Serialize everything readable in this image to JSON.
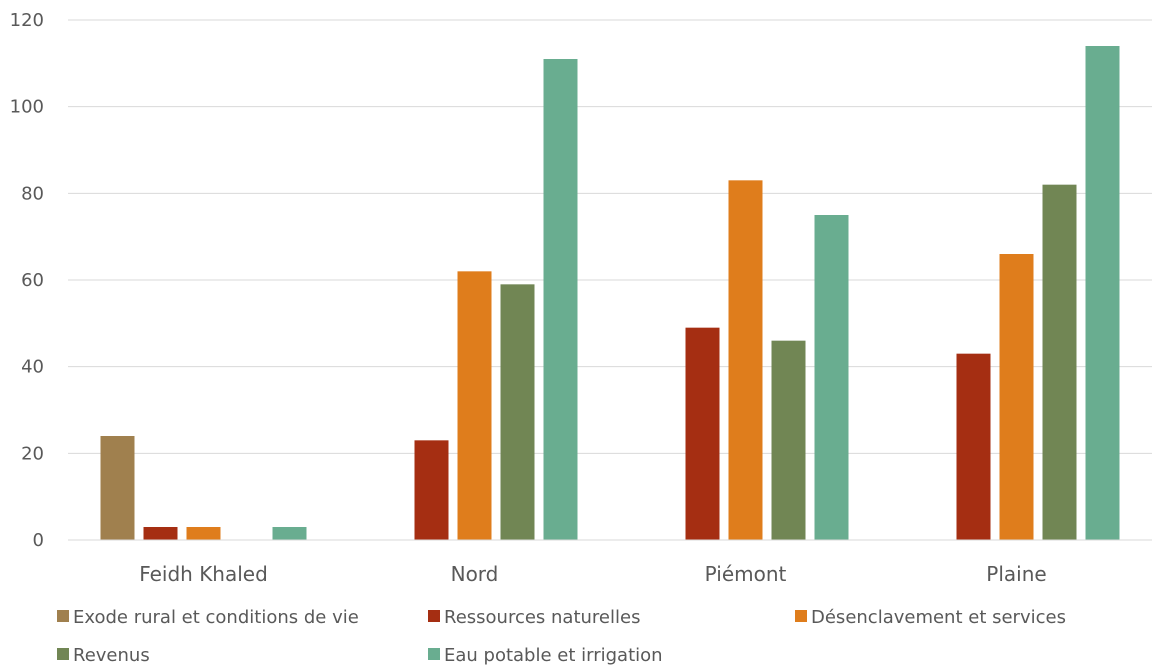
{
  "chart_data": {
    "type": "bar",
    "categories": [
      "Feidh Khaled",
      "Nord",
      "Piémont",
      "Plaine"
    ],
    "series": [
      {
        "name": "Exode rural et conditions de vie",
        "color": "#A0804E",
        "values": [
          24,
          0,
          0,
          0
        ]
      },
      {
        "name": "Ressources naturelles",
        "color": "#A52E12",
        "values": [
          3,
          23,
          49,
          43
        ]
      },
      {
        "name": "Désenclavement et services",
        "color": "#DF7D1C",
        "values": [
          3,
          62,
          83,
          66
        ]
      },
      {
        "name": "Revenus",
        "color": "#718654",
        "values": [
          0,
          59,
          46,
          82
        ]
      },
      {
        "name": "Eau potable et irrigation",
        "color": "#69AD90",
        "values": [
          3,
          111,
          75,
          114
        ]
      }
    ],
    "yticks": [
      "0",
      "20",
      "40",
      "60",
      "80",
      "100",
      "120"
    ],
    "ylim": [
      0,
      120
    ],
    "grid": true,
    "legend": "bottom"
  }
}
